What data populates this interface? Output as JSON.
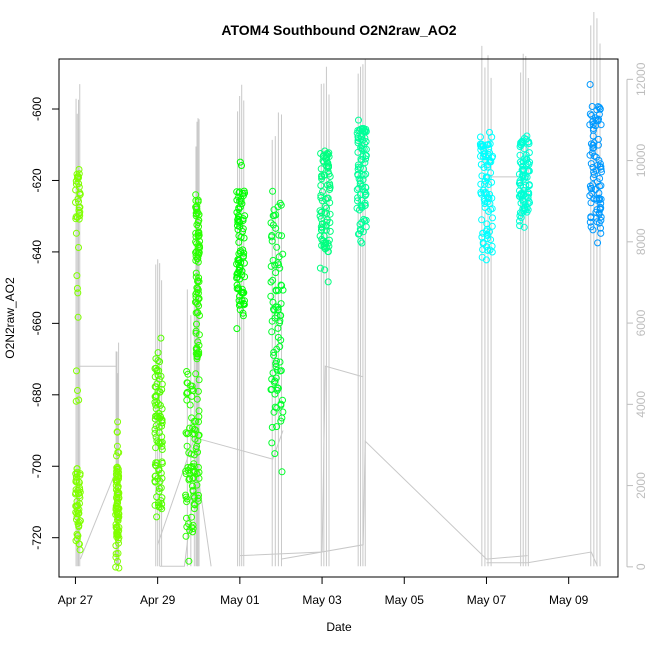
{
  "chart_data": {
    "type": "scatter",
    "title": "ATOM4 Southbound O2N2raw_AO2",
    "xlabel": "Date",
    "ylabel": "O2N2raw_AO2",
    "x_ticks": [
      "Apr 27",
      "Apr 29",
      "May 01",
      "May 03",
      "May 05",
      "May 07",
      "May 09"
    ],
    "x_tick_days": [
      0,
      2,
      4,
      6,
      8,
      10,
      12
    ],
    "xlim_days": [
      -0.4,
      13.2
    ],
    "y_ticks": [
      -600,
      -620,
      -640,
      -660,
      -680,
      -700,
      -720
    ],
    "ylim": [
      -731,
      -586
    ],
    "right_axis": {
      "ticks": [
        "0",
        "2000",
        "4000",
        "6000",
        "8000",
        "10000",
        "12000"
      ],
      "values": [
        0,
        2000,
        4000,
        6000,
        8000,
        10000,
        12000
      ],
      "range": [
        -250,
        12500
      ],
      "color": "#bdbdbd"
    },
    "grid": false,
    "point_style": "open-circle",
    "background_trace_color": "#c8c8c8",
    "clusters": [
      {
        "x_start": 0.0,
        "x_end": 0.12,
        "y_low": -727,
        "y_high": -615,
        "dense_low": -722,
        "dense_high": -700,
        "dense_high2": -632,
        "dense_low2": -618,
        "color": "#80ff00"
      },
      {
        "x_start": 0.98,
        "x_end": 1.06,
        "y_low": -729,
        "y_high": -686,
        "dense_low": -722,
        "dense_high": -700,
        "color": "#80ff00"
      },
      {
        "x_start": 1.93,
        "x_end": 2.12,
        "y_low": -715,
        "y_high": -662,
        "dense_low": -712,
        "dense_high": -668,
        "color": "#55ff00"
      },
      {
        "x_start": 2.68,
        "x_end": 3.02,
        "y_low": -727,
        "y_high": -670,
        "dense_low": -720,
        "dense_high": -675,
        "color": "#2aff00"
      },
      {
        "x_start": 2.92,
        "x_end": 3.02,
        "y_low": -676,
        "y_high": -623,
        "dense_low": -670,
        "dense_high": -625,
        "color": "#2aff00"
      },
      {
        "x_start": 3.92,
        "x_end": 4.12,
        "y_low": -663,
        "y_high": -612,
        "dense_low": -655,
        "dense_high": -622,
        "color": "#00ff00"
      },
      {
        "x_start": 4.75,
        "x_end": 5.05,
        "y_low": -703,
        "y_high": -622,
        "dense_low": -690,
        "dense_high": -626,
        "color": "#00ff2a"
      },
      {
        "x_start": 5.95,
        "x_end": 6.2,
        "y_low": -649,
        "y_high": -608,
        "dense_low": -640,
        "dense_high": -612,
        "color": "#00ff80"
      },
      {
        "x_start": 6.85,
        "x_end": 7.08,
        "y_low": -642,
        "y_high": -602,
        "dense_low": -635,
        "dense_high": -605,
        "color": "#00ff99"
      },
      {
        "x_start": 9.85,
        "x_end": 10.15,
        "y_low": -646,
        "y_high": -604,
        "dense_low": -640,
        "dense_high": -609,
        "color": "#00ffff"
      },
      {
        "x_start": 10.8,
        "x_end": 11.05,
        "y_low": -634,
        "y_high": -605,
        "dense_low": -630,
        "dense_high": -608,
        "color": "#00ffd5"
      },
      {
        "x_start": 12.5,
        "x_end": 12.8,
        "y_low": -640,
        "y_high": -593,
        "dense_low": -635,
        "dense_high": -598,
        "color": "#0099ff"
      }
    ]
  }
}
